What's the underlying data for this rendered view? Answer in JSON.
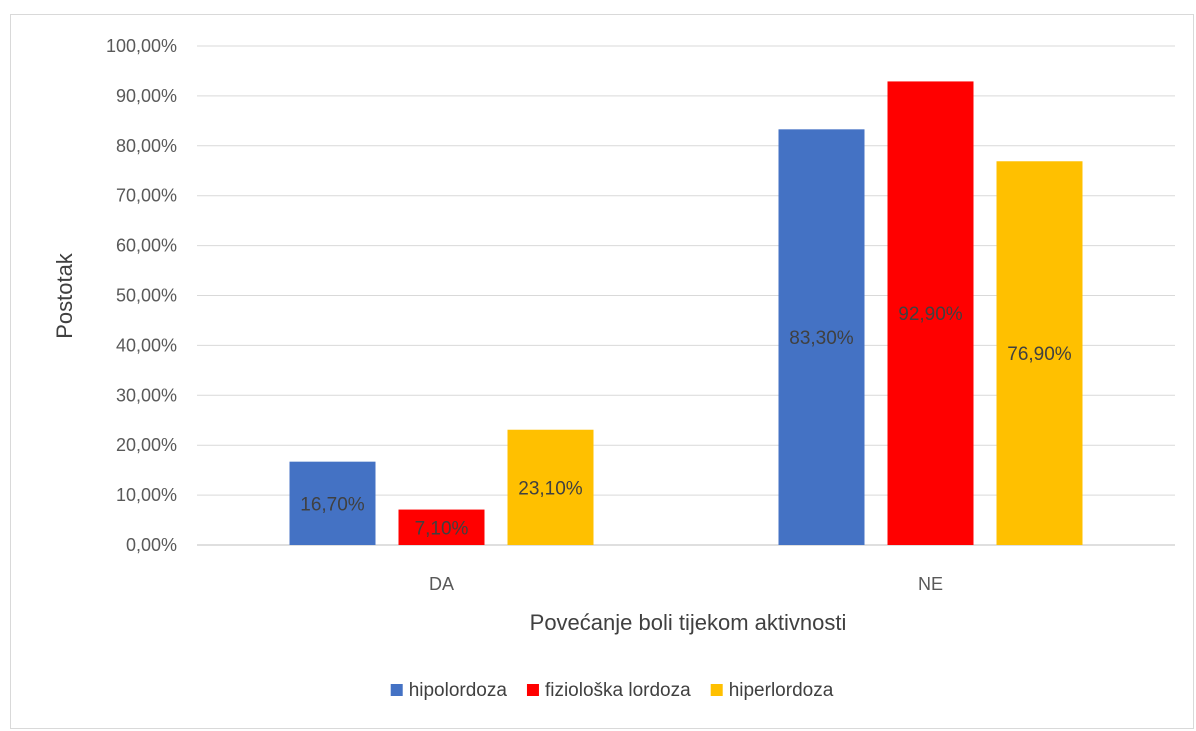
{
  "chart_data": {
    "type": "bar",
    "title": "",
    "xlabel": "Povećanje boli tijekom aktivnosti",
    "ylabel": "Postotak",
    "categories": [
      "DA",
      "NE"
    ],
    "ylim": [
      0,
      100
    ],
    "y_ticks": [
      "0,00%",
      "10,00%",
      "20,00%",
      "30,00%",
      "40,00%",
      "50,00%",
      "60,00%",
      "70,00%",
      "80,00%",
      "90,00%",
      "100,00%"
    ],
    "grid": true,
    "legend_position": "bottom",
    "series": [
      {
        "name": "hipolordoza",
        "color": "#4472C4",
        "values": [
          16.7,
          83.3
        ],
        "labels": [
          "16,70%",
          "83,30%"
        ]
      },
      {
        "name": "fiziološka lordoza",
        "color": "#FF0000",
        "values": [
          7.1,
          92.9
        ],
        "labels": [
          "7,10%",
          "92,90%"
        ]
      },
      {
        "name": "hiperlordoza",
        "color": "#FFC000",
        "values": [
          23.1,
          76.9
        ],
        "labels": [
          "23,10%",
          "76,90%"
        ]
      }
    ]
  }
}
